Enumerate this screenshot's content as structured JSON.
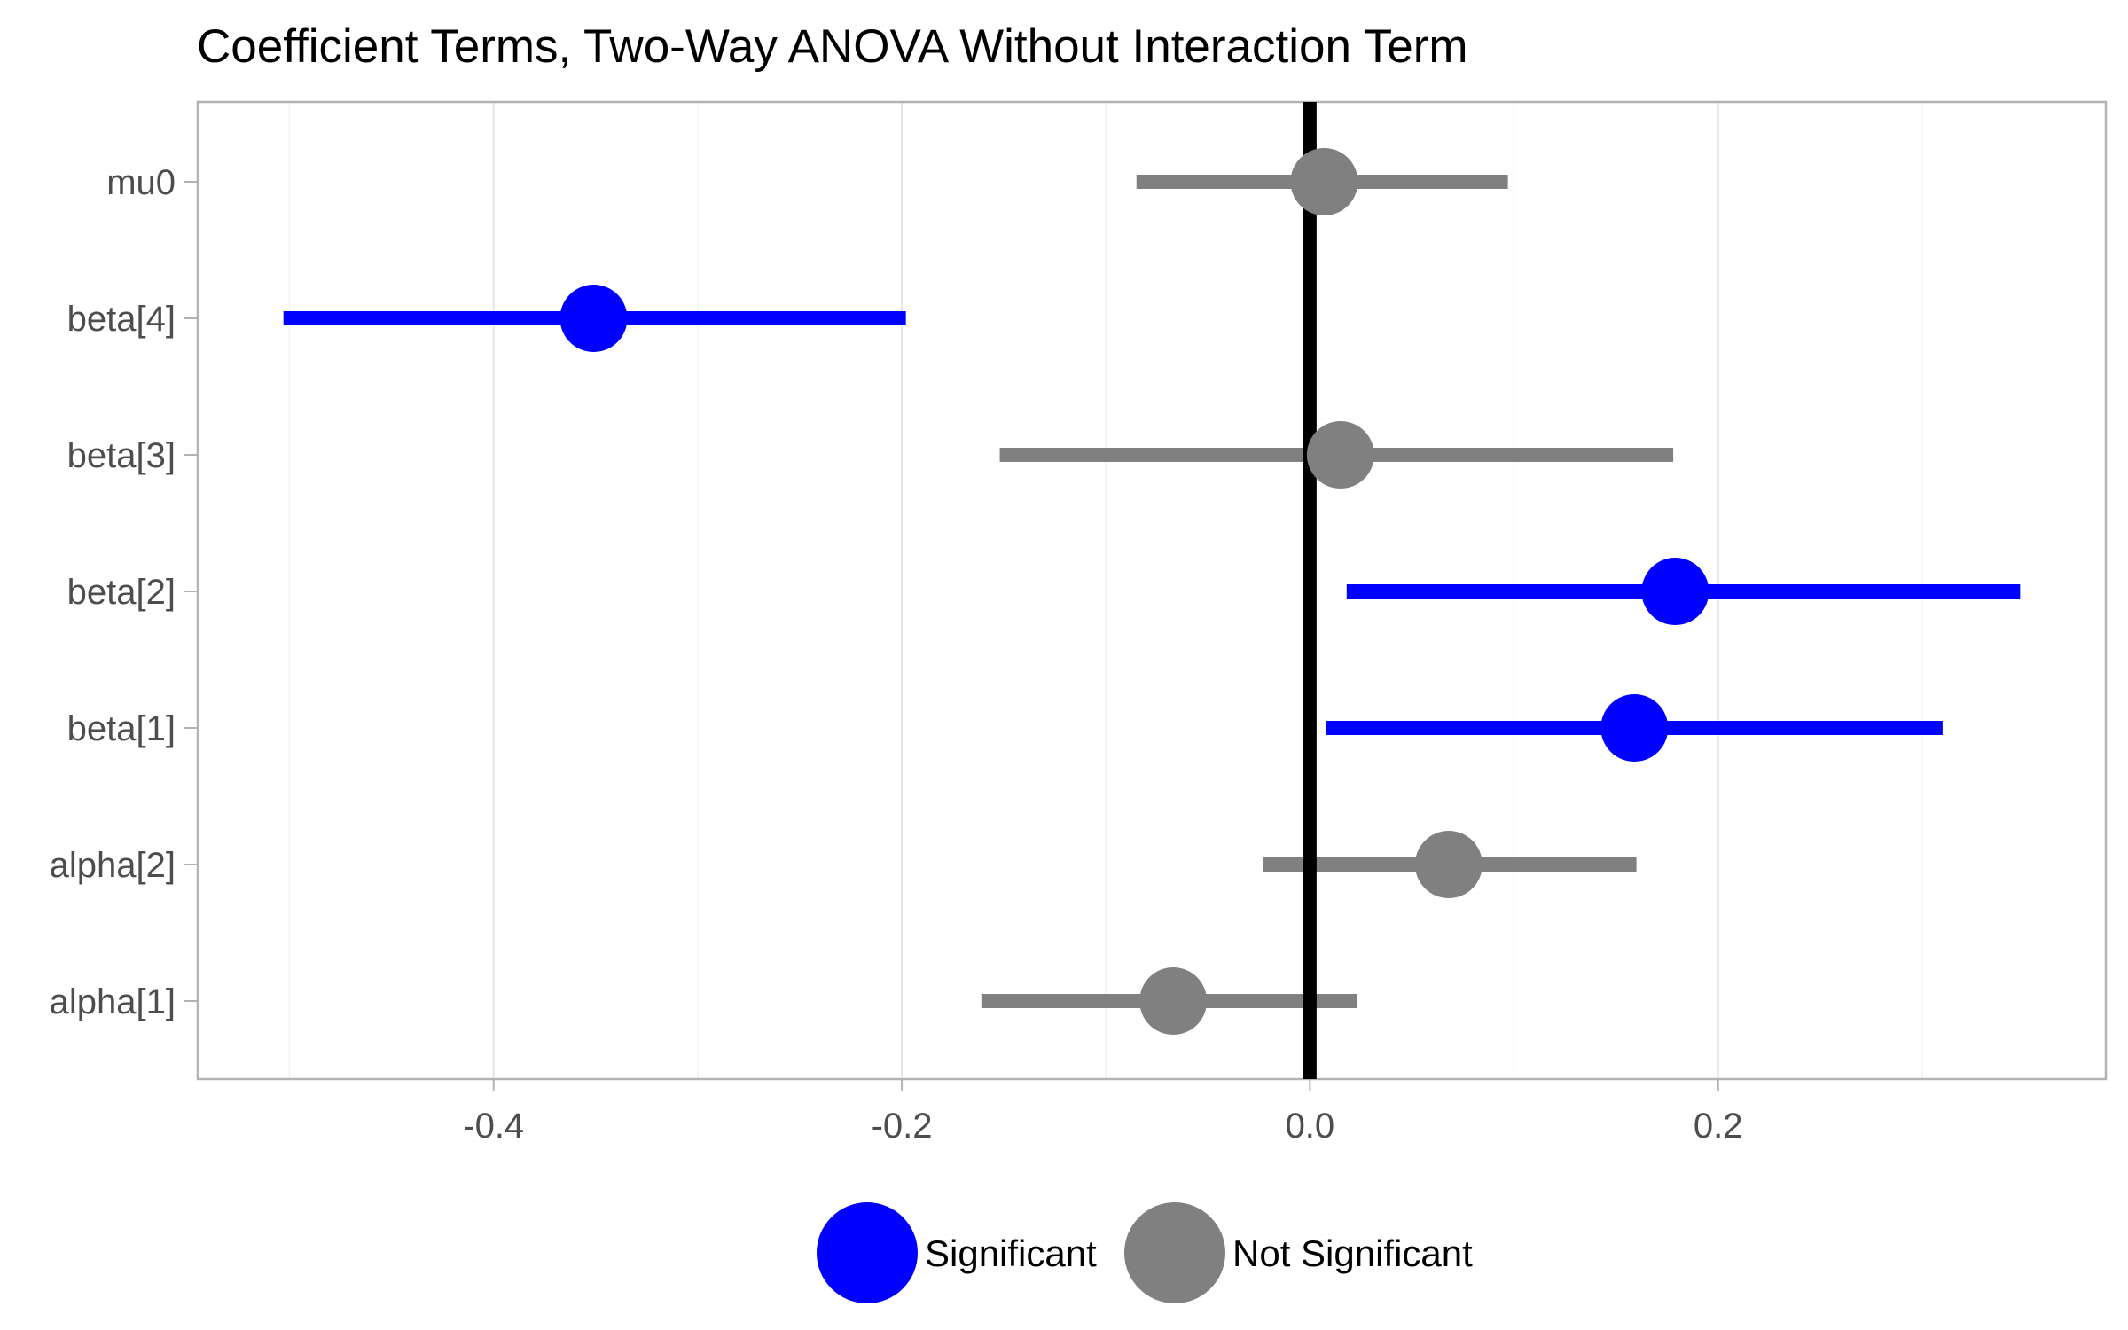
{
  "chart_data": {
    "type": "forest",
    "title": "Coefficient Terms, Two-Way ANOVA Without Interaction Term",
    "xlabel": "",
    "ylabel": "",
    "xlim": [
      -0.545,
      0.39
    ],
    "x_ticks": [
      -0.4,
      -0.2,
      0.0,
      0.2
    ],
    "x_tick_labels": [
      "-0.4",
      "-0.2",
      "0.0",
      "0.2"
    ],
    "reference_line": 0.0,
    "grid": "vertical only",
    "legend_position": "bottom",
    "categories": [
      "mu0",
      "beta[4]",
      "beta[3]",
      "beta[2]",
      "beta[1]",
      "alpha[2]",
      "alpha[1]"
    ],
    "series": [
      {
        "name": "Significant",
        "color": "#0000ff"
      },
      {
        "name": "Not Significant",
        "color": "#808080"
      }
    ],
    "points": [
      {
        "term": "mu0",
        "estimate": 0.007,
        "lower": -0.085,
        "upper": 0.097,
        "group": "Not Significant"
      },
      {
        "term": "beta[4]",
        "estimate": -0.351,
        "lower": -0.503,
        "upper": -0.198,
        "group": "Significant"
      },
      {
        "term": "beta[3]",
        "estimate": 0.015,
        "lower": -0.152,
        "upper": 0.178,
        "group": "Not Significant"
      },
      {
        "term": "beta[2]",
        "estimate": 0.179,
        "lower": 0.018,
        "upper": 0.348,
        "group": "Significant"
      },
      {
        "term": "beta[1]",
        "estimate": 0.159,
        "lower": 0.008,
        "upper": 0.31,
        "group": "Significant"
      },
      {
        "term": "alpha[2]",
        "estimate": 0.068,
        "lower": -0.023,
        "upper": 0.16,
        "group": "Not Significant"
      },
      {
        "term": "alpha[1]",
        "estimate": -0.067,
        "lower": -0.161,
        "upper": 0.023,
        "group": "Not Significant"
      }
    ]
  }
}
